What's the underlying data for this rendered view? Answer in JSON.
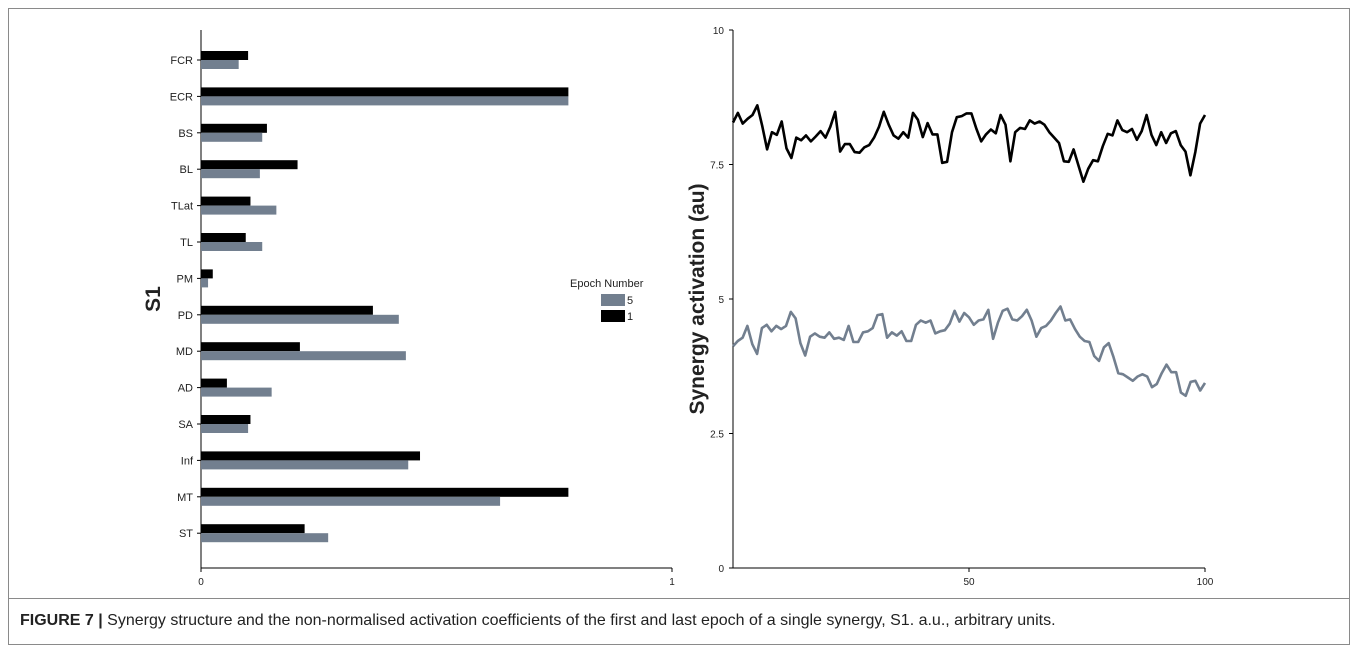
{
  "caption": {
    "figure_label": "FIGURE 7 |",
    "text": "Synergy structure and the non-normalised activation coefficients of the first and last epoch of a single synergy, S1. a.u., arbitrary units."
  },
  "colors": {
    "epoch5": "#727f8f",
    "epoch1": "#000000",
    "axis": "#000000"
  },
  "chart_data": [
    {
      "type": "bar",
      "orientation": "horizontal",
      "title": "",
      "ylabel": "S1",
      "xlabel": "",
      "categories": [
        "FCR",
        "ECR",
        "BS",
        "BL",
        "TLat",
        "TL",
        "PM",
        "PD",
        "MD",
        "AD",
        "SA",
        "Inf",
        "MT",
        "ST"
      ],
      "series": [
        {
          "name": "5",
          "color": "#727f8f",
          "values": [
            0.08,
            0.78,
            0.13,
            0.125,
            0.16,
            0.13,
            0.015,
            0.42,
            0.435,
            0.15,
            0.1,
            0.44,
            0.635,
            0.27
          ]
        },
        {
          "name": "1",
          "color": "#000000",
          "values": [
            0.1,
            0.78,
            0.14,
            0.205,
            0.105,
            0.095,
            0.025,
            0.365,
            0.21,
            0.055,
            0.105,
            0.465,
            0.78,
            0.22
          ]
        }
      ],
      "xlim": [
        0,
        1
      ],
      "x_ticks": [
        "0",
        "1"
      ],
      "legend": {
        "title": "Epoch Number",
        "placement": "right"
      },
      "grid": false
    },
    {
      "type": "line",
      "title": "",
      "ylabel": "Synergy activation (au)",
      "xlabel": "",
      "xlim": [
        0,
        100
      ],
      "ylim": [
        0,
        10
      ],
      "x_ticks": [
        "50",
        "100"
      ],
      "y_ticks": [
        "0",
        "2.5",
        "5",
        "7.5",
        "10"
      ],
      "grid": false,
      "series": [
        {
          "name": "1",
          "color": "#000000",
          "values": [
            8.28,
            8.46,
            8.26,
            8.35,
            8.42,
            8.6,
            8.22,
            7.78,
            8.1,
            8.05,
            8.3,
            7.8,
            7.62,
            8.0,
            7.95,
            8.04,
            7.93,
            8.02,
            8.12,
            8.0,
            8.2,
            8.48,
            7.74,
            7.88,
            7.88,
            7.73,
            7.72,
            7.82,
            7.86,
            8.0,
            8.2,
            8.48,
            8.24,
            8.04,
            7.98,
            8.1,
            8.0,
            8.46,
            8.33,
            8.01,
            8.27,
            8.06,
            8.06,
            7.53,
            7.55,
            8.1,
            8.38,
            8.4,
            8.45,
            8.45,
            8.17,
            7.93,
            8.06,
            8.15,
            8.08,
            8.42,
            8.24,
            7.56,
            8.1,
            8.18,
            8.16,
            8.32,
            8.26,
            8.3,
            8.24,
            8.1,
            8.0,
            7.9,
            7.56,
            7.55,
            7.78,
            7.48,
            7.18,
            7.42,
            7.58,
            7.56,
            7.84,
            8.07,
            8.04,
            8.32,
            8.14,
            8.1,
            8.16,
            7.96,
            8.12,
            8.42,
            8.05,
            7.86,
            8.1,
            7.9,
            8.08,
            8.12,
            7.86,
            7.74,
            7.3,
            7.73,
            8.26,
            8.42
          ]
        },
        {
          "name": "5",
          "color": "#727f8f",
          "values": [
            4.12,
            4.22,
            4.28,
            4.5,
            4.16,
            3.98,
            4.46,
            4.52,
            4.4,
            4.5,
            4.44,
            4.5,
            4.76,
            4.64,
            4.18,
            3.95,
            4.3,
            4.36,
            4.3,
            4.28,
            4.38,
            4.26,
            4.28,
            4.24,
            4.5,
            4.2,
            4.2,
            4.38,
            4.4,
            4.46,
            4.7,
            4.72,
            4.28,
            4.38,
            4.32,
            4.4,
            4.22,
            4.22,
            4.52,
            4.6,
            4.56,
            4.6,
            4.36,
            4.4,
            4.42,
            4.54,
            4.78,
            4.58,
            4.74,
            4.66,
            4.52,
            4.6,
            4.62,
            4.8,
            4.26,
            4.56,
            4.78,
            4.82,
            4.62,
            4.6,
            4.68,
            4.8,
            4.6,
            4.3,
            4.46,
            4.5,
            4.6,
            4.74,
            4.86,
            4.6,
            4.62,
            4.44,
            4.3,
            4.22,
            4.2,
            3.94,
            3.85,
            4.1,
            4.18,
            3.92,
            3.62,
            3.6,
            3.54,
            3.48,
            3.56,
            3.6,
            3.56,
            3.36,
            3.42,
            3.62,
            3.78,
            3.64,
            3.64,
            3.26,
            3.2,
            3.46,
            3.48,
            3.3,
            3.44
          ]
        }
      ]
    }
  ]
}
